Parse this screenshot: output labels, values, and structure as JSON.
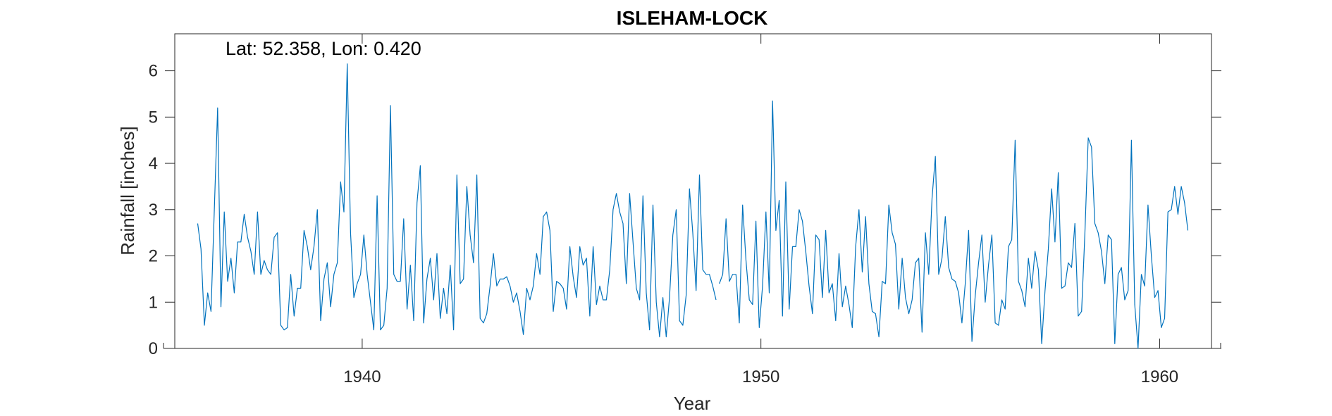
{
  "chart_data": {
    "type": "line",
    "title": "ISLEHAM-LOCK",
    "annotation": "Lat: 52.358, Lon: 0.420",
    "xlabel": "Year",
    "ylabel": "Rainfall [inches]",
    "xlim": [
      1935.3,
      1961.3
    ],
    "ylim": [
      0,
      6.8
    ],
    "xticks": [
      1940,
      1950,
      1960
    ],
    "yticks": [
      0,
      1,
      2,
      3,
      4,
      5,
      6
    ],
    "grid": false,
    "colors": {
      "series": "#0072BD",
      "axes": "#262626"
    },
    "series": [
      {
        "start_year": 1935.875,
        "step_years": 0.0833333,
        "values": [
          [
            2.7,
            2.15,
            0.5,
            1.2,
            0.8,
            3.0,
            5.2,
            0.9,
            2.95,
            1.45,
            1.95,
            1.2,
            2.3,
            2.3,
            2.9,
            2.4,
            2.1,
            1.6,
            2.95,
            1.6,
            1.9,
            1.7,
            1.6,
            2.4,
            2.5,
            0.5,
            0.4,
            0.45,
            1.6,
            0.7,
            1.3,
            1.3,
            2.55,
            2.2,
            1.7,
            2.2,
            3.0,
            0.6,
            1.5,
            1.85,
            0.9,
            1.6,
            1.85,
            3.6,
            2.95,
            6.15,
            2.5,
            1.1,
            1.4,
            1.6,
            2.45,
            1.6,
            1.0,
            0.4,
            3.3,
            0.4,
            0.5,
            1.3,
            5.25,
            1.6,
            1.45,
            1.45,
            2.8,
            0.85,
            1.8,
            0.6,
            3.15,
            3.95,
            0.55,
            1.5,
            1.95,
            1.05,
            2.05,
            0.65,
            1.3,
            0.75,
            1.8,
            0.4,
            3.75,
            1.4,
            1.5,
            3.5,
            2.45,
            1.85,
            3.75,
            0.65,
            0.55,
            0.75,
            1.35,
            2.05,
            1.35,
            1.5,
            1.5,
            1.55,
            1.35,
            1.0,
            1.2,
            0.8,
            0.3,
            1.3,
            1.05,
            1.35,
            2.05,
            1.6,
            2.85,
            2.95,
            2.55,
            0.8,
            1.45,
            1.4,
            1.3,
            0.85,
            2.2,
            1.55,
            1.1,
            2.2,
            1.8,
            1.95,
            0.7,
            2.2,
            0.95,
            1.35,
            1.05,
            1.05,
            1.7,
            3.0,
            3.35,
            2.95,
            2.7,
            1.4,
            3.35,
            2.3,
            1.3,
            1.05,
            3.3,
            1.2,
            0.4,
            3.1,
            1.0,
            0.25,
            1.1,
            0.25,
            1.1,
            2.45,
            3.0,
            0.6,
            0.5,
            1.15,
            3.45,
            2.5,
            1.25,
            3.75,
            1.7,
            1.6,
            1.6,
            1.35,
            1.05
          ],
          [
            1.4,
            1.6,
            2.8,
            1.45,
            1.6,
            1.6,
            0.55,
            3.1,
            1.9,
            1.05,
            0.95,
            2.75,
            0.45,
            1.35,
            2.95,
            1.2,
            5.35,
            2.55,
            3.2,
            0.7,
            3.6,
            0.85,
            2.2,
            2.2,
            3.0,
            2.75,
            2.1,
            1.35,
            0.75,
            2.45,
            2.35,
            1.1,
            2.55,
            1.2,
            1.4,
            0.6,
            2.05,
            0.9,
            1.35,
            0.95,
            0.45,
            2.2,
            3.0,
            1.65,
            2.85,
            1.4,
            0.8,
            0.75,
            0.25,
            1.45,
            1.4,
            3.1,
            2.5,
            2.25,
            0.85,
            1.95,
            1.1,
            0.75,
            1.05,
            1.85,
            1.95,
            0.35,
            2.5,
            1.6,
            3.25,
            4.15,
            1.6,
            1.95,
            2.85,
            1.75,
            1.5,
            1.45,
            1.2,
            0.55,
            1.4,
            2.55,
            0.15,
            1.15,
            1.85,
            2.45,
            1.0,
            1.8,
            2.45,
            0.55,
            0.5,
            1.05,
            0.85,
            2.2,
            2.35,
            4.5,
            1.45,
            1.25,
            0.9,
            1.95,
            1.3,
            2.1,
            1.7,
            0.1,
            1.25,
            2.15,
            3.45,
            2.3,
            3.8,
            1.3,
            1.35,
            1.85,
            1.75,
            2.7,
            0.7,
            0.8,
            2.5,
            4.55,
            4.35,
            2.7,
            2.5,
            2.1,
            1.4,
            2.45,
            2.35,
            0.1,
            1.6,
            1.75,
            1.05,
            1.25,
            4.5,
            0.95,
            0.0,
            1.6,
            1.35,
            3.1,
            2.0,
            1.1,
            1.25,
            0.45,
            0.65,
            2.95,
            3.0,
            3.5,
            2.9,
            3.5,
            3.15,
            2.55
          ]
        ]
      }
    ]
  }
}
